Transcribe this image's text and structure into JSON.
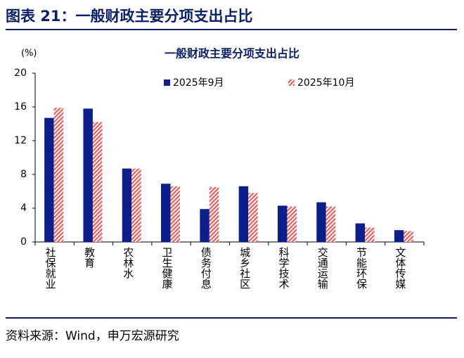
{
  "header": {
    "title": "图表 21：一般财政主要分项支出占比"
  },
  "chart_data": {
    "type": "bar",
    "title": "一般财政主要分项支出占比",
    "y_label": "(%)",
    "categories": [
      "社保就业",
      "教育",
      "农林水",
      "卫生健康",
      "债务付息",
      "城乡社区",
      "科学技术",
      "交通运输",
      "节能环保",
      "文体传媒"
    ],
    "series": [
      {
        "name": "2025年9月",
        "color": "#0b1f8c",
        "values": [
          14.7,
          15.8,
          8.7,
          6.9,
          3.9,
          6.6,
          4.3,
          4.7,
          2.2,
          1.4
        ]
      },
      {
        "name": "2025年10月",
        "color": "#e06060",
        "hatch": true,
        "values": [
          15.9,
          14.2,
          8.7,
          6.6,
          6.5,
          5.8,
          4.2,
          4.2,
          1.7,
          1.3
        ]
      }
    ],
    "ylim": [
      0,
      20
    ],
    "yticks": [
      0,
      4,
      8,
      12,
      16,
      20
    ],
    "grid": false,
    "legend": "top"
  },
  "source": "资料来源：Wind，申万宏源研究"
}
